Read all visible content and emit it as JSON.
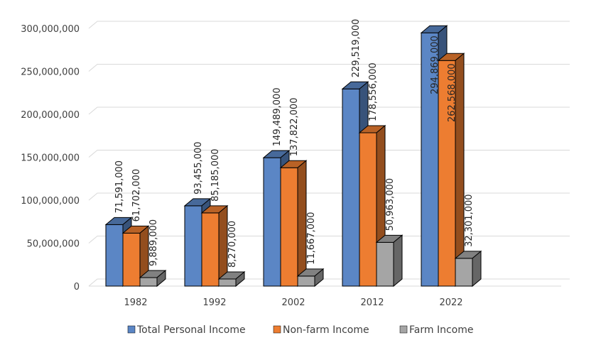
{
  "chart_data": {
    "type": "bar",
    "style": "3d-clustered-column",
    "categories": [
      "1982",
      "1992",
      "2002",
      "2012",
      "2022"
    ],
    "series": [
      {
        "name": "Total Personal Income",
        "color": "#5b86c5",
        "values": [
          71591000,
          93455000,
          149489000,
          229519000,
          294869000
        ],
        "labels": [
          "71,591,000",
          "93,455,000",
          "149,489,000",
          "229,519,000",
          "294,869,000"
        ]
      },
      {
        "name": "Non-farm Income",
        "color": "#ed7d31",
        "values": [
          61702000,
          85185000,
          137822000,
          178556000,
          262568000
        ],
        "labels": [
          "61,702,000",
          "85,185,000",
          "137,822,000",
          "178,556,000",
          "262,568,000"
        ]
      },
      {
        "name": "Farm Income",
        "color": "#a5a5a5",
        "values": [
          9889000,
          8270000,
          11667000,
          50963000,
          32301000
        ],
        "labels": [
          "9,889,000",
          "8,270,000",
          "11,667,000",
          "50,963,000",
          "32,301,000"
        ]
      }
    ],
    "ylim": [
      0,
      300000000
    ],
    "yticks": [
      0,
      50000000,
      100000000,
      150000000,
      200000000,
      250000000,
      300000000
    ],
    "ytick_labels": [
      "0",
      "50,000,000",
      "100,000,000",
      "150,000,000",
      "200,000,000",
      "250,000,000",
      "300,000,000"
    ],
    "title": "",
    "xlabel": "",
    "ylabel": "",
    "legend_position": "bottom",
    "grid": true
  }
}
